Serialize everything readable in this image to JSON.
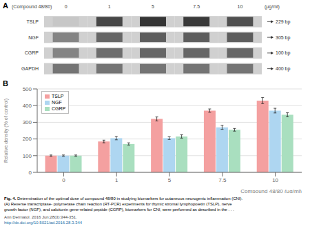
{
  "chart_data": [
    {
      "type": "gel",
      "panel_label": "A",
      "title": "(Compound 48/80)",
      "xlabel": "(μg/ml)",
      "categories": [
        "0",
        "1",
        "5",
        "7.5",
        "10"
      ],
      "series": [
        {
          "name": "TSLP",
          "annotation": "229 bp",
          "values": [
            0.25,
            0.82,
            0.9,
            0.88,
            0.78
          ]
        },
        {
          "name": "NGF",
          "annotation": "305 bp",
          "values": [
            0.55,
            0.68,
            0.72,
            0.72,
            0.72
          ]
        },
        {
          "name": "CGRP",
          "annotation": "100 bp",
          "values": [
            0.55,
            0.65,
            0.68,
            0.68,
            0.68
          ]
        },
        {
          "name": "GAPDH",
          "annotation": "400 bp",
          "values": [
            0.62,
            0.62,
            0.62,
            0.62,
            0.62
          ]
        }
      ]
    },
    {
      "type": "bar",
      "panel_label": "B",
      "categories": [
        "0",
        "1",
        "5",
        "7.5",
        "10"
      ],
      "xlabel": "Compound 48/80 (μg/ml)",
      "ylabel": "Relative density (% of control)",
      "ylim": [
        0,
        500
      ],
      "yticks": [
        0,
        100,
        200,
        300,
        400,
        500
      ],
      "grid": true,
      "legend": "upper left",
      "series": [
        {
          "name": "TSLP",
          "color": "#f4a0a0",
          "values": [
            100,
            185,
            320,
            370,
            430
          ],
          "errors": [
            4,
            8,
            12,
            10,
            18
          ]
        },
        {
          "name": "NGF",
          "color": "#aed6f1",
          "values": [
            100,
            205,
            205,
            270,
            370
          ],
          "errors": [
            4,
            10,
            8,
            12,
            14
          ]
        },
        {
          "name": "CGRP",
          "color": "#a9dfbf",
          "values": [
            100,
            170,
            215,
            255,
            345
          ],
          "errors": [
            4,
            7,
            10,
            8,
            12
          ]
        }
      ]
    }
  ],
  "caption": {
    "bold": "Fig. 4.",
    "lines": [
      "Determination of the optimal dose of compound 48/80 in studying biomarkers for cutaneous neurogenic inflammation (CNI).",
      "(A) Reverse transcriptase- polymerase chain reaction (RT-PCR) experiments for thymic stromal lymphopoietin (TSLP), nerve",
      "growth factor (NGF), and calcitonin gene-related peptide (CGRP), biomarkers for CNI, were performed as described in the . . ."
    ]
  },
  "source": [
    "Ann Dermatol. 2016 Jun;28(3):344-351.",
    "http://dx.doi.org/10.5021/ad.2016.28.3.344"
  ]
}
